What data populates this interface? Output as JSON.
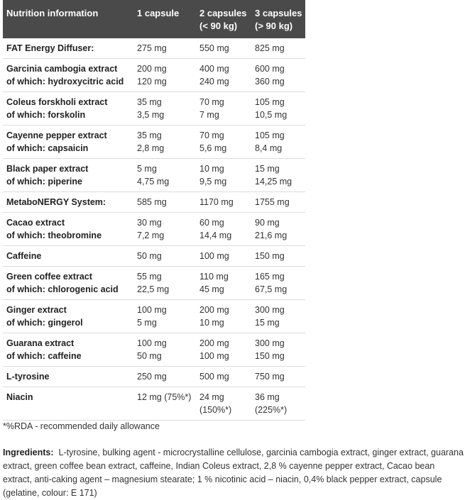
{
  "table": {
    "headers": [
      [
        "Nutrition information"
      ],
      [
        "1 capsule"
      ],
      [
        "2 capsules",
        "(< 90 kg)"
      ],
      [
        "3 capsules",
        "(> 90 kg)"
      ]
    ],
    "rows": [
      {
        "name": [
          "FAT Energy Diffuser:"
        ],
        "c1": [
          "275 mg"
        ],
        "c2": [
          "550  mg"
        ],
        "c3": [
          "825 mg"
        ]
      },
      {
        "name": [
          "Garcinia cambogia extract",
          "of which: hydroxycitric acid"
        ],
        "c1": [
          "200 mg",
          "120 mg"
        ],
        "c2": [
          "400 mg",
          "240 mg"
        ],
        "c3": [
          "600 mg",
          "360 mg"
        ]
      },
      {
        "name": [
          "Coleus forskholi extract",
          "of which: forskolin"
        ],
        "c1": [
          "35 mg",
          "3,5 mg"
        ],
        "c2": [
          "70 mg",
          "7 mg"
        ],
        "c3": [
          "105 mg",
          "10,5 mg"
        ]
      },
      {
        "name": [
          "Cayenne pepper extract",
          "of which: capsaicin"
        ],
        "c1": [
          "35 mg",
          "2,8 mg"
        ],
        "c2": [
          "70 mg",
          "5,6 mg"
        ],
        "c3": [
          "105 mg",
          "8,4 mg"
        ]
      },
      {
        "name": [
          "Black paper extract",
          "of which: piperine"
        ],
        "c1": [
          "5 mg",
          "4,75 mg"
        ],
        "c2": [
          "10 mg",
          "9,5 mg"
        ],
        "c3": [
          "15 mg",
          "14,25 mg"
        ]
      },
      {
        "name": [
          "MetaboNERGY System:"
        ],
        "c1": [
          "585 mg"
        ],
        "c2": [
          "1170 mg"
        ],
        "c3": [
          "1755 mg"
        ]
      },
      {
        "name": [
          "Cacao extract",
          "of which: theobromine"
        ],
        "c1": [
          "30 mg",
          "7,2 mg"
        ],
        "c2": [
          "60 mg",
          "14,4 mg"
        ],
        "c3": [
          "90 mg",
          "21,6 mg"
        ]
      },
      {
        "name": [
          "Caffeine"
        ],
        "c1": [
          "50 mg"
        ],
        "c2": [
          "100 mg"
        ],
        "c3": [
          "150 mg"
        ]
      },
      {
        "name": [
          "Green coffee extract",
          "of which: chlorogenic acid"
        ],
        "c1": [
          "55 mg",
          "22,5 mg"
        ],
        "c2": [
          "110 mg",
          "45 mg"
        ],
        "c3": [
          "165 mg",
          "67,5 mg"
        ]
      },
      {
        "name": [
          "Ginger extract",
          "of which: gingerol"
        ],
        "c1": [
          "100 mg",
          "5 mg"
        ],
        "c2": [
          "200 mg",
          "10 mg"
        ],
        "c3": [
          "300 mg",
          "15 mg"
        ]
      },
      {
        "name": [
          "Guarana extract",
          "of which: caffeine"
        ],
        "c1": [
          "100 mg",
          "50 mg"
        ],
        "c2": [
          "200 mg",
          "100 mg"
        ],
        "c3": [
          "300 mg",
          "150 mg"
        ]
      },
      {
        "name": [
          "L-tyrosine"
        ],
        "c1": [
          "250 mg"
        ],
        "c2": [
          "500 mg"
        ],
        "c3": [
          "750 mg"
        ]
      },
      {
        "name": [
          "Niacin"
        ],
        "c1": [
          "12 mg (75%*)"
        ],
        "c2": [
          "24 mg",
          "(150%*)"
        ],
        "c3": [
          "36 mg",
          "(225%*)"
        ]
      }
    ]
  },
  "footnote": "*%RDA - recommended daily allowance",
  "ingredients": {
    "label": "Ingredients:",
    "text": "L-tyrosine, bulking agent - microcrystalline cellulose, garcinia cambogia extract, ginger extract, guarana extract, green coffee bean extract, caffeine, Indian Coleus extract, 2,8 % cayenne pepper extract, Cacao bean extract, anti-caking agent – magnesium stearate; 1 % nicotinic acid – niacin, 0,4% black pepper extract, capsule (gelatine, colour: E 171)"
  },
  "colors": {
    "header_bg": "#4a4a4a",
    "header_text": "#ffffff",
    "row_border": "#dcdcdc"
  }
}
